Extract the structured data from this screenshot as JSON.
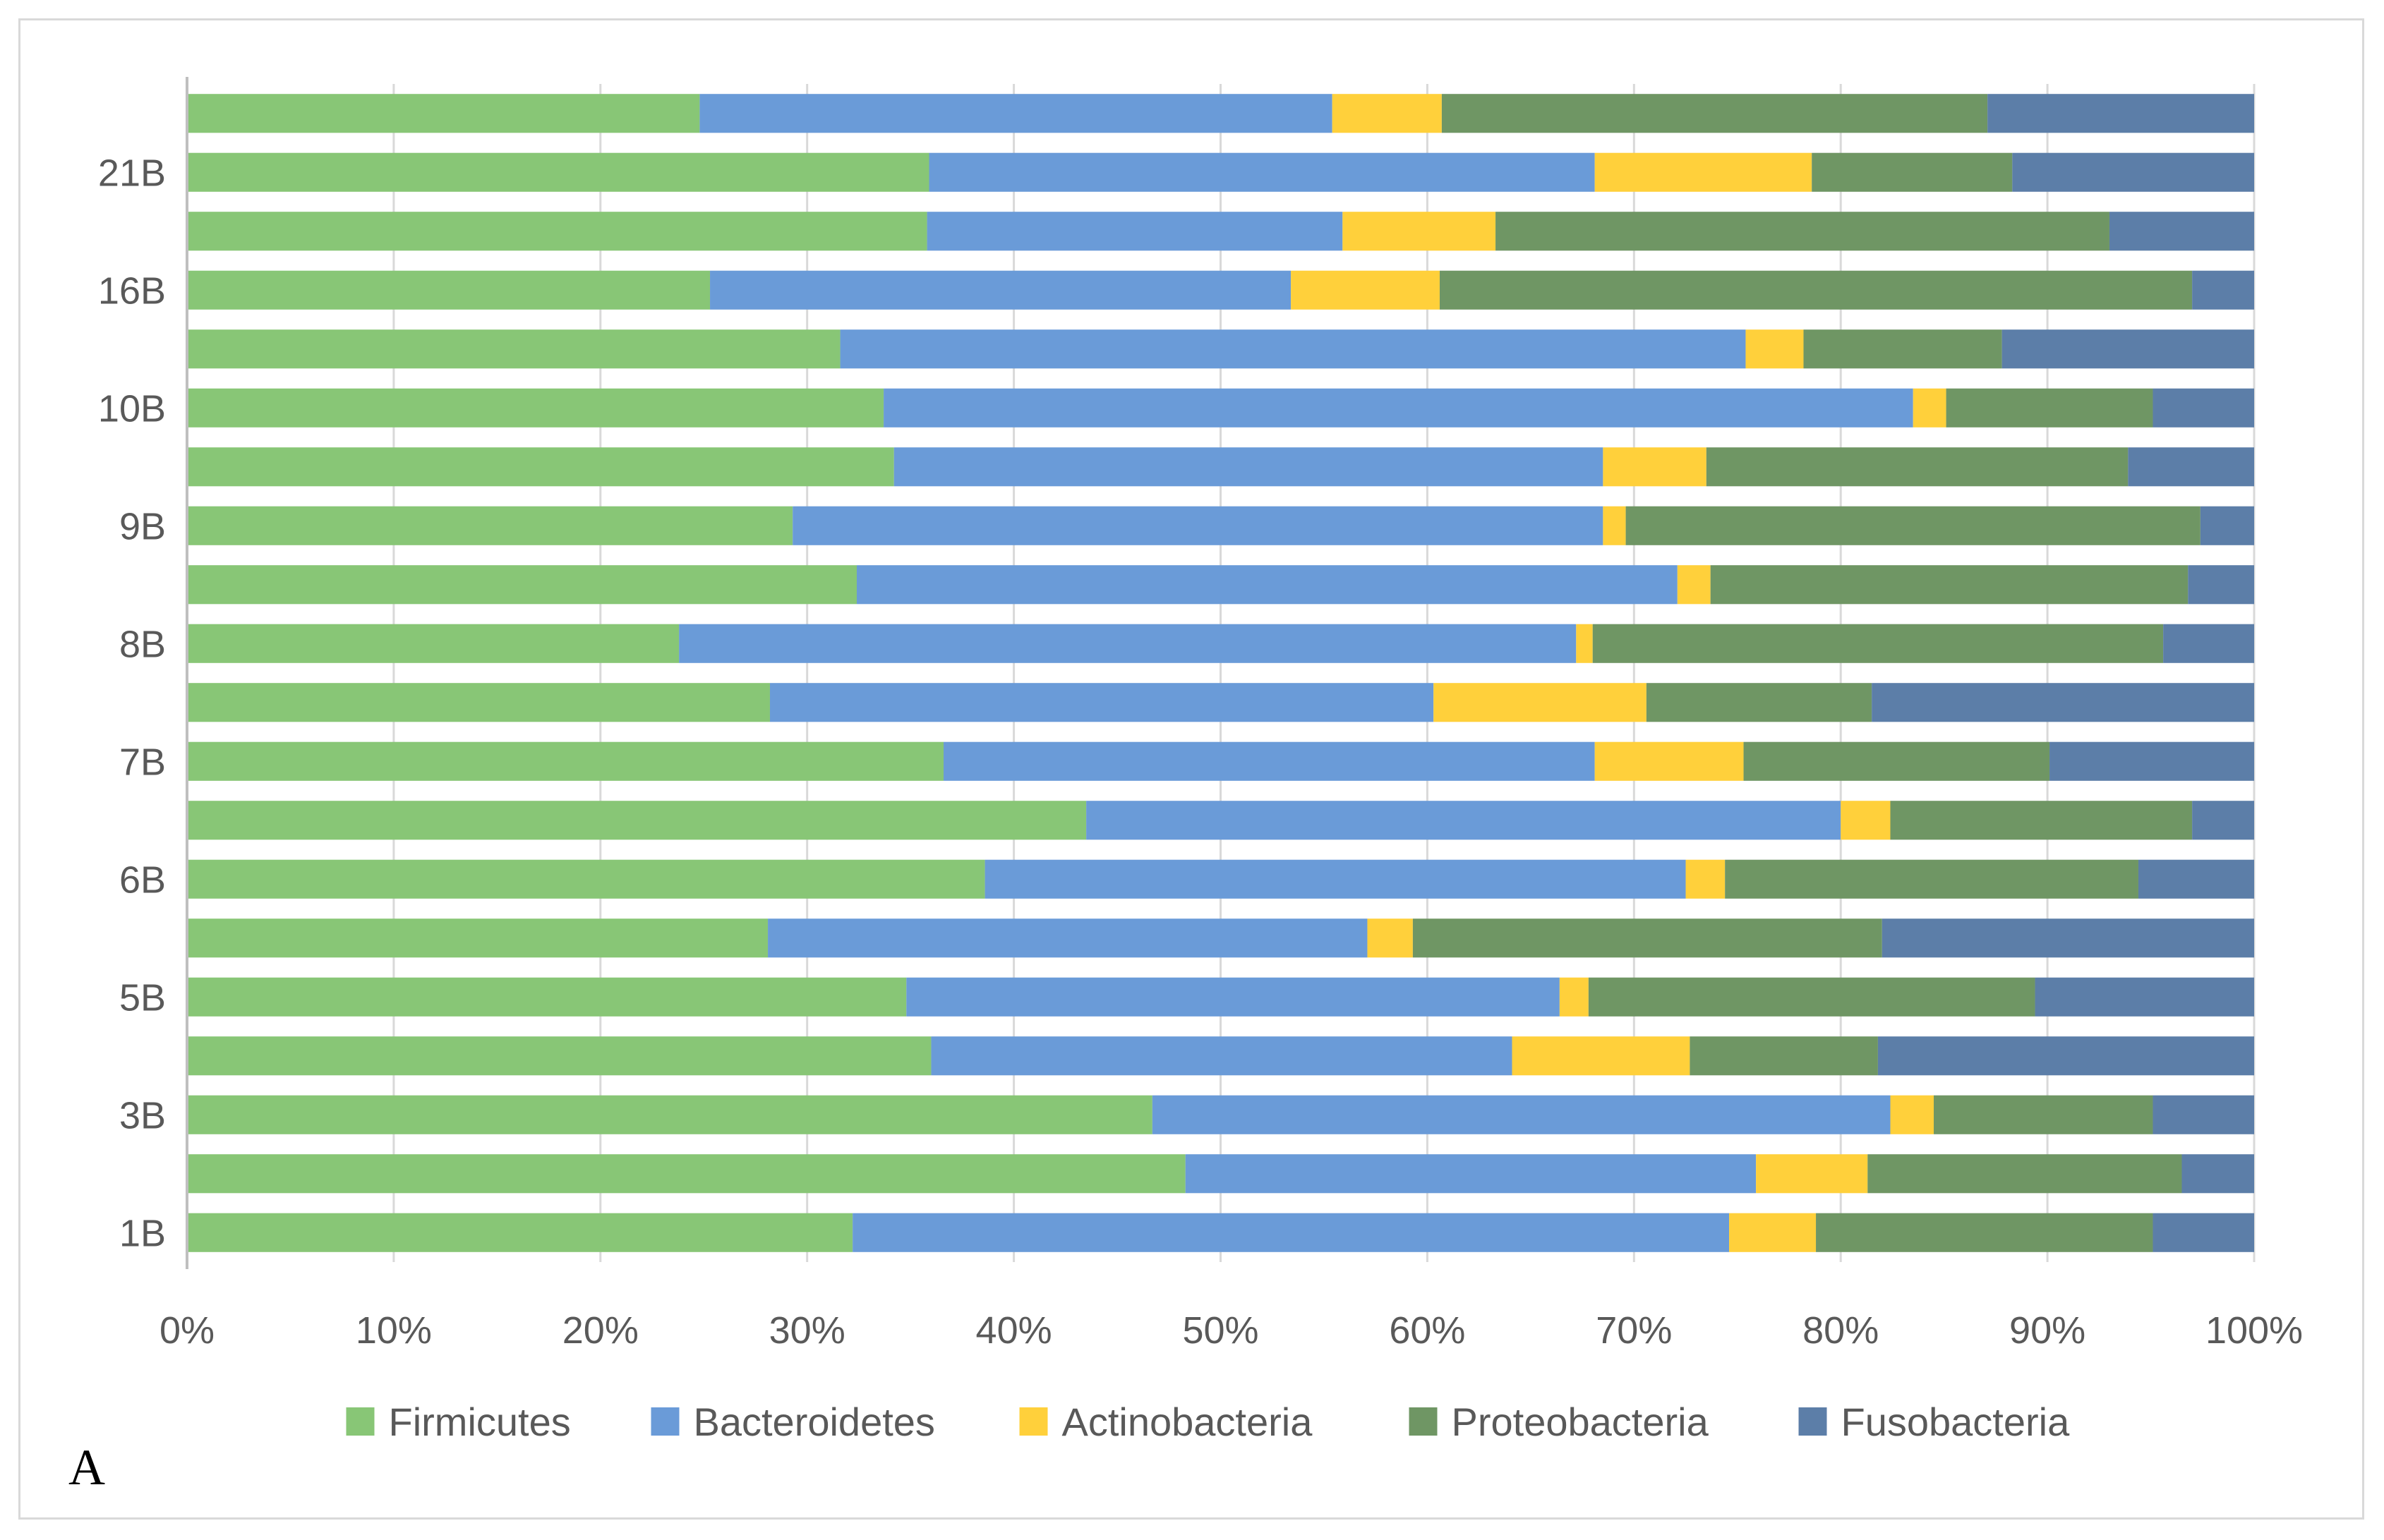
{
  "panel_label": "A",
  "chart_data": {
    "type": "bar",
    "orientation": "horizontal",
    "stacking": "percent",
    "categories": [
      "1B",
      "",
      "3B",
      "",
      "5B",
      "",
      "6B",
      "",
      "7B",
      "",
      "8B",
      "",
      "9B",
      "",
      "10B",
      "",
      "16B",
      "",
      "21B",
      ""
    ],
    "y_tick_labels": [
      "1B",
      "3B",
      "5B",
      "6B",
      "7B",
      "8B",
      "9B",
      "10B",
      "16B",
      "21B"
    ],
    "x_ticks": [
      "0%",
      "10%",
      "20%",
      "30%",
      "40%",
      "50%",
      "60%",
      "70%",
      "80%",
      "90%",
      "100%"
    ],
    "xlim": [
      0,
      100
    ],
    "grid": true,
    "legend_position": "bottom",
    "series": [
      {
        "name": "Firmicutes",
        "color": "#88c676",
        "values": [
          32.2,
          48.3,
          46.7,
          36.0,
          34.8,
          28.1,
          38.6,
          43.5,
          36.6,
          28.2,
          23.8,
          32.4,
          29.3,
          34.2,
          33.7,
          31.6,
          25.3,
          35.8,
          35.9,
          24.8
        ]
      },
      {
        "name": "Bacteroidetes",
        "color": "#6a9bd8",
        "values": [
          42.4,
          27.6,
          35.7,
          28.1,
          31.6,
          29.0,
          33.9,
          36.5,
          31.5,
          32.1,
          43.4,
          39.7,
          39.2,
          34.3,
          49.8,
          43.8,
          28.1,
          20.1,
          32.2,
          30.6
        ]
      },
      {
        "name": "Actinobacteria",
        "color": "#ffd03b",
        "values": [
          4.2,
          5.4,
          2.1,
          8.6,
          1.4,
          2.2,
          1.9,
          2.4,
          7.2,
          10.3,
          0.8,
          1.6,
          1.1,
          5.0,
          1.6,
          2.8,
          7.2,
          7.4,
          10.5,
          5.3
        ]
      },
      {
        "name": "Proteobacteria",
        "color": "#6f9664",
        "values": [
          16.3,
          15.2,
          10.6,
          9.1,
          21.6,
          22.7,
          20.0,
          14.6,
          14.8,
          10.9,
          27.6,
          23.1,
          27.8,
          20.4,
          10.0,
          9.6,
          36.4,
          29.7,
          9.7,
          26.4
        ]
      },
      {
        "name": "Fusobacteria",
        "color": "#5c7ea8",
        "values": [
          4.9,
          3.5,
          4.9,
          18.2,
          10.6,
          18.0,
          5.6,
          3.0,
          9.9,
          18.5,
          4.4,
          3.2,
          2.6,
          6.1,
          4.9,
          12.2,
          3.0,
          7.0,
          11.7,
          12.9
        ]
      }
    ]
  }
}
